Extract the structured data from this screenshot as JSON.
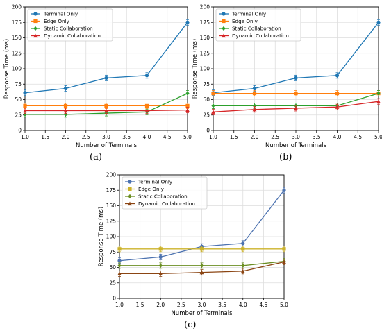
{
  "chart_data": [
    {
      "type": "line",
      "panel": "(a)",
      "xlabel": "Number of Terminals",
      "ylabel": "Response Time (ms)",
      "xlim": [
        1.0,
        5.0
      ],
      "ylim": [
        0,
        200
      ],
      "x_ticks": [
        "1.0",
        "1.5",
        "2.0",
        "2.5",
        "3.0",
        "3.5",
        "4.0",
        "4.5",
        "5.0"
      ],
      "y_ticks": [
        "0",
        "25",
        "50",
        "75",
        "100",
        "125",
        "150",
        "175",
        "200"
      ],
      "grid": true,
      "legend": "top-left",
      "x": [
        1,
        2,
        3,
        4,
        5
      ],
      "series": [
        {
          "name": "Terminal Only",
          "color": "#1f77b4",
          "marker": "circle",
          "values": [
            61,
            68,
            85,
            89,
            175
          ]
        },
        {
          "name": "Edge Only",
          "color": "#ff7f0e",
          "marker": "square",
          "values": [
            40,
            40,
            40,
            40,
            40
          ]
        },
        {
          "name": "Static Collaboration",
          "color": "#2ca02c",
          "marker": "diamond",
          "values": [
            26,
            26,
            28,
            30,
            60
          ]
        },
        {
          "name": "Dynamic Collaboration",
          "color": "#d62728",
          "marker": "triangle",
          "values": [
            32,
            32,
            32,
            32,
            33
          ]
        }
      ]
    },
    {
      "type": "line",
      "panel": "(b)",
      "xlabel": "Number of Terminals",
      "ylabel": "Response Time (ms)",
      "xlim": [
        1.0,
        5.0
      ],
      "ylim": [
        0,
        200
      ],
      "x_ticks": [
        "1.0",
        "1.5",
        "2.0",
        "2.5",
        "3.0",
        "3.5",
        "4.0",
        "4.5",
        "5.0"
      ],
      "y_ticks": [
        "0",
        "25",
        "50",
        "75",
        "100",
        "125",
        "150",
        "175",
        "200"
      ],
      "grid": true,
      "legend": "top-left",
      "x": [
        1,
        2,
        3,
        4,
        5
      ],
      "series": [
        {
          "name": "Terminal Only",
          "color": "#1f77b4",
          "marker": "circle",
          "values": [
            61,
            68,
            85,
            89,
            175
          ]
        },
        {
          "name": "Edge Only",
          "color": "#ff7f0e",
          "marker": "square",
          "values": [
            60,
            60,
            60,
            60,
            60
          ]
        },
        {
          "name": "Static Collaboration",
          "color": "#2ca02c",
          "marker": "diamond",
          "values": [
            40,
            40,
            40,
            40,
            60
          ]
        },
        {
          "name": "Dynamic Collaboration",
          "color": "#d62728",
          "marker": "triangle",
          "values": [
            30,
            34,
            36,
            38,
            47
          ]
        }
      ]
    },
    {
      "type": "line",
      "panel": "(c)",
      "xlabel": "Number of Terminals",
      "ylabel": "Response Time (ms)",
      "xlim": [
        1.0,
        5.0
      ],
      "ylim": [
        0,
        200
      ],
      "x_ticks": [
        "1.0",
        "1.5",
        "2.0",
        "2.5",
        "3.0",
        "3.5",
        "4.0",
        "4.5",
        "5.0"
      ],
      "y_ticks": [
        "0",
        "25",
        "50",
        "75",
        "100",
        "125",
        "150",
        "175",
        "200"
      ],
      "grid": true,
      "legend": "top-left",
      "x": [
        1,
        2,
        3,
        4,
        5
      ],
      "series": [
        {
          "name": "Terminal Only",
          "color": "#4c72b0",
          "marker": "circle",
          "values": [
            61,
            67,
            84,
            89,
            175
          ]
        },
        {
          "name": "Edge Only",
          "color": "#ccb22a",
          "marker": "square",
          "values": [
            80,
            80,
            80,
            80,
            80
          ]
        },
        {
          "name": "Static Collaboration",
          "color": "#6b8e23",
          "marker": "diamond",
          "values": [
            53,
            53,
            53,
            53,
            60
          ]
        },
        {
          "name": "Dynamic Collaboration",
          "color": "#8b4513",
          "marker": "triangle",
          "values": [
            40,
            40,
            42,
            44,
            59
          ]
        }
      ]
    }
  ]
}
